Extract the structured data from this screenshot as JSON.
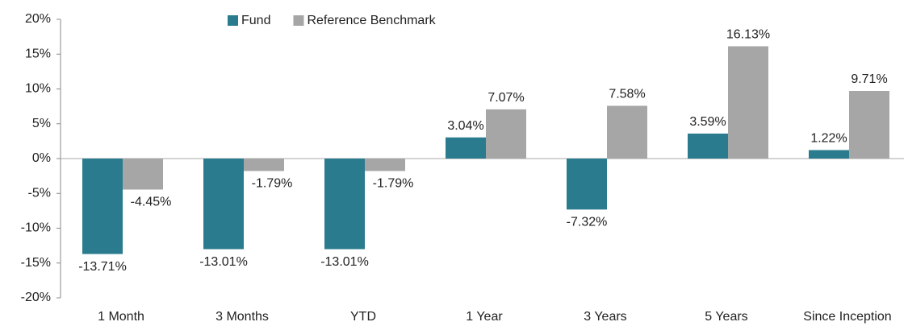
{
  "chart_data": {
    "type": "bar",
    "legend": "top",
    "categories": [
      "1 Month",
      "3 Months",
      "YTD",
      "1 Year",
      "3 Years",
      "5 Years",
      "Since Inception"
    ],
    "series": [
      {
        "name": "Fund",
        "color": "#2a7b8e",
        "values": [
          -13.71,
          -13.01,
          -13.01,
          3.04,
          -7.32,
          3.59,
          1.22
        ],
        "value_labels": [
          "-13.71%",
          "-13.01%",
          "-13.01%",
          "3.04%",
          "-7.32%",
          "3.59%",
          "1.22%"
        ]
      },
      {
        "name": "Reference Benchmark",
        "color": "#a6a6a6",
        "values": [
          -4.45,
          -1.79,
          -1.79,
          7.07,
          7.58,
          16.13,
          9.71
        ],
        "value_labels": [
          "-4.45%",
          "-1.79%",
          "-1.79%",
          "7.07%",
          "7.58%",
          "16.13%",
          "9.71%"
        ]
      }
    ],
    "ylim": [
      -20,
      20
    ],
    "yticks": [
      {
        "value": -20,
        "label": "-20%"
      },
      {
        "value": -15,
        "label": "-15%"
      },
      {
        "value": -10,
        "label": "-10%"
      },
      {
        "value": -5,
        "label": "-5%"
      },
      {
        "value": 0,
        "label": "0%"
      },
      {
        "value": 5,
        "label": "5%"
      },
      {
        "value": 10,
        "label": "10%"
      },
      {
        "value": 15,
        "label": "15%"
      },
      {
        "value": 20,
        "label": "20%"
      }
    ]
  }
}
